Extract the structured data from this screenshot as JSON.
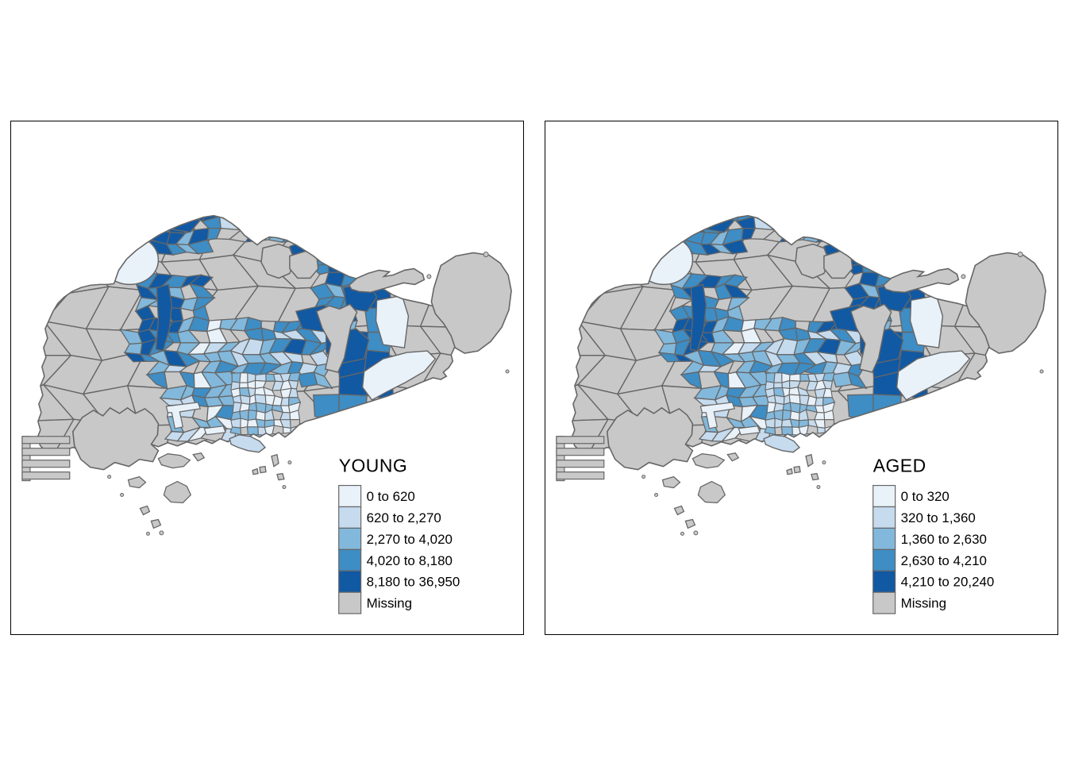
{
  "figure": {
    "background": "#FFFFFF",
    "panel_border_color": "#000000",
    "region_border_color": "#666666",
    "water_color": "#FFFFFF",
    "text_color": "#000000"
  },
  "class_colors": [
    "#E9F1F9",
    "#C6DBEE",
    "#82B8DB",
    "#3E8DC4",
    "#1159A3"
  ],
  "missing_color": "#C8C8C8",
  "panels": [
    {
      "id": "young",
      "title": "YOUNG",
      "legend": {
        "labels": [
          "0 to 620",
          "620 to 2,270",
          "2,270 to 4,020",
          "4,020 to 8,180",
          "8,180 to 36,950",
          "Missing"
        ]
      }
    },
    {
      "id": "aged",
      "title": "AGED",
      "legend": {
        "labels": [
          "0 to 320",
          "320 to 1,360",
          "1,360 to 2,630",
          "2,630 to 4,210",
          "4,210 to 20,240",
          "Missing"
        ]
      }
    }
  ]
}
